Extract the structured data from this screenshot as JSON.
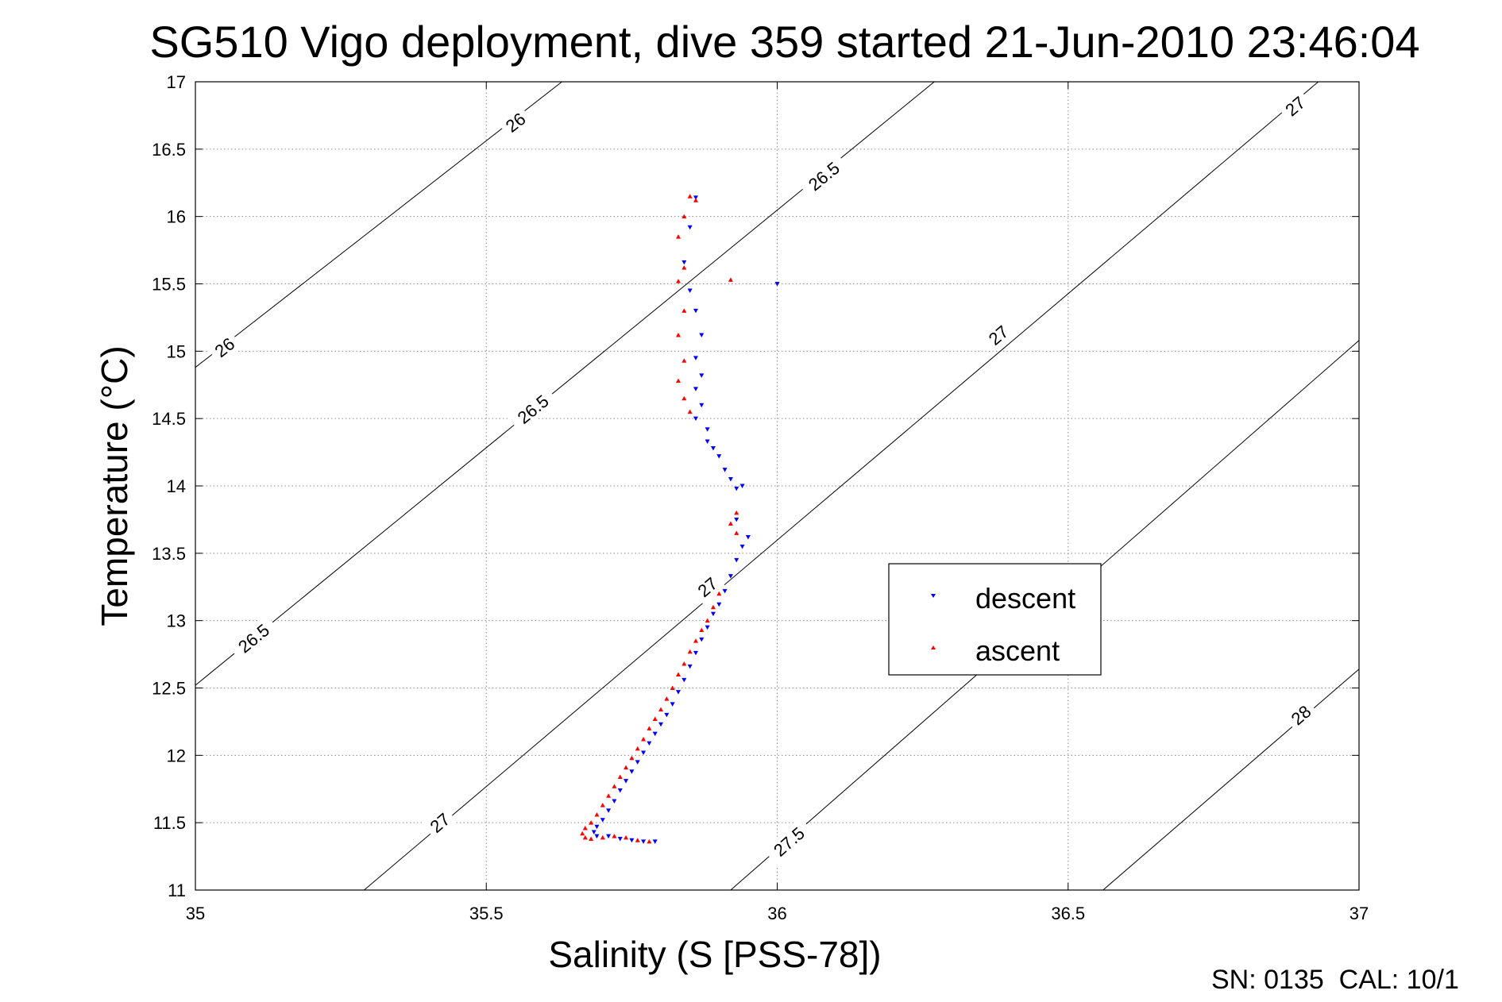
{
  "chart_data": {
    "type": "scatter",
    "title": "SG510 Vigo deployment, dive 359 started 21-Jun-2010 23:46:04",
    "xlabel": "Salinity (S [PSS-78])",
    "ylabel": "Temperature (°C)",
    "xlim": [
      35,
      37
    ],
    "ylim": [
      11,
      17
    ],
    "xticks": [
      "35",
      "35.5",
      "36",
      "36.5",
      "37"
    ],
    "yticks": [
      "11",
      "11.5",
      "12",
      "12.5",
      "13",
      "13.5",
      "14",
      "14.5",
      "15",
      "15.5",
      "16",
      "16.5",
      "17"
    ],
    "grid": true,
    "legend": {
      "position": "center-right",
      "entries": [
        "descent",
        "ascent"
      ]
    },
    "colors": {
      "descent": "#0000ff",
      "ascent": "#ff0000",
      "contour": "#000000"
    },
    "footer": "SN: 0135  CAL: 10/1",
    "density_contours": [
      {
        "level": "26",
        "points": [
          [
            35.0,
            14.88
          ],
          [
            35.63,
            17.0
          ]
        ],
        "labels": [
          {
            "text": "26",
            "x": 35.05,
            "y": 15.03
          },
          {
            "text": "26",
            "x": 35.55,
            "y": 16.7
          }
        ]
      },
      {
        "level": "26.5",
        "points": [
          [
            35.0,
            12.52
          ],
          [
            36.27,
            17.0
          ]
        ],
        "labels": [
          {
            "text": "26.5",
            "x": 35.1,
            "y": 12.87
          },
          {
            "text": "26.5",
            "x": 35.58,
            "y": 14.57
          },
          {
            "text": "26.5",
            "x": 36.08,
            "y": 16.3
          }
        ]
      },
      {
        "level": "27",
        "points": [
          [
            35.29,
            11.0
          ],
          [
            36.93,
            17.0
          ]
        ],
        "labels": [
          {
            "text": "27",
            "x": 35.42,
            "y": 11.5
          },
          {
            "text": "27",
            "x": 35.88,
            "y": 13.25
          },
          {
            "text": "27",
            "x": 36.38,
            "y": 15.12
          },
          {
            "text": "27",
            "x": 36.89,
            "y": 16.82
          }
        ]
      },
      {
        "level": "27.5",
        "points": [
          [
            35.92,
            11.0
          ],
          [
            37.0,
            15.08
          ]
        ],
        "labels": [
          {
            "text": "27.5",
            "x": 36.02,
            "y": 11.36
          }
        ]
      },
      {
        "level": "28",
        "points": [
          [
            36.56,
            11.0
          ],
          [
            37.0,
            12.64
          ]
        ],
        "labels": [
          {
            "text": "28",
            "x": 36.9,
            "y": 12.3
          }
        ]
      }
    ],
    "series": [
      {
        "name": "descent",
        "marker": "triangle-down",
        "color": "#0000ff",
        "x": [
          35.86,
          35.85,
          35.84,
          35.85,
          35.86,
          35.87,
          35.86,
          35.87,
          35.86,
          35.87,
          35.86,
          35.88,
          35.88,
          35.89,
          35.9,
          35.91,
          35.92,
          35.93,
          35.94,
          35.93,
          35.95,
          35.94,
          35.93,
          35.92,
          35.91,
          35.9,
          35.89,
          35.88,
          35.87,
          35.86,
          35.85,
          35.84,
          35.83,
          35.82,
          35.81,
          35.8,
          35.79,
          35.78,
          35.77,
          35.76,
          35.75,
          35.74,
          35.73,
          35.72,
          35.71,
          35.7,
          35.69,
          35.685,
          35.69,
          35.71,
          35.73,
          35.75,
          35.77,
          35.79,
          36.0
        ],
        "y": [
          16.14,
          15.92,
          15.66,
          15.45,
          15.3,
          15.12,
          14.95,
          14.82,
          14.72,
          14.6,
          14.5,
          14.42,
          14.33,
          14.28,
          14.22,
          14.12,
          14.05,
          13.98,
          14.0,
          13.75,
          13.62,
          13.55,
          13.45,
          13.33,
          13.22,
          13.12,
          13.05,
          12.95,
          12.86,
          12.76,
          12.66,
          12.56,
          12.47,
          12.38,
          12.3,
          12.23,
          12.16,
          12.09,
          12.02,
          11.95,
          11.88,
          11.81,
          11.74,
          11.66,
          11.59,
          11.52,
          11.47,
          11.43,
          11.4,
          11.4,
          11.38,
          11.37,
          11.36,
          11.36,
          15.5
        ]
      },
      {
        "name": "ascent",
        "marker": "triangle-up",
        "color": "#ff0000",
        "x": [
          35.85,
          35.86,
          35.84,
          35.83,
          35.84,
          35.83,
          35.84,
          35.83,
          35.84,
          35.83,
          35.84,
          35.85,
          35.93,
          35.92,
          35.93,
          35.9,
          35.89,
          35.88,
          35.87,
          35.86,
          35.85,
          35.84,
          35.83,
          35.82,
          35.81,
          35.8,
          35.79,
          35.78,
          35.77,
          35.76,
          35.75,
          35.74,
          35.73,
          35.72,
          35.71,
          35.7,
          35.69,
          35.68,
          35.67,
          35.665,
          35.67,
          35.68,
          35.7,
          35.72,
          35.74,
          35.76,
          35.78,
          35.92
        ],
        "y": [
          16.15,
          16.12,
          16.0,
          15.85,
          15.62,
          15.52,
          15.3,
          15.12,
          14.93,
          14.78,
          14.65,
          14.55,
          13.8,
          13.72,
          13.65,
          13.2,
          13.1,
          13.0,
          12.93,
          12.85,
          12.77,
          12.68,
          12.6,
          12.5,
          12.42,
          12.34,
          12.27,
          12.2,
          12.12,
          12.05,
          11.98,
          11.91,
          11.84,
          11.77,
          11.7,
          11.63,
          11.56,
          11.5,
          11.46,
          11.42,
          11.39,
          11.38,
          11.39,
          11.4,
          11.39,
          11.37,
          11.36,
          15.53
        ]
      }
    ]
  }
}
